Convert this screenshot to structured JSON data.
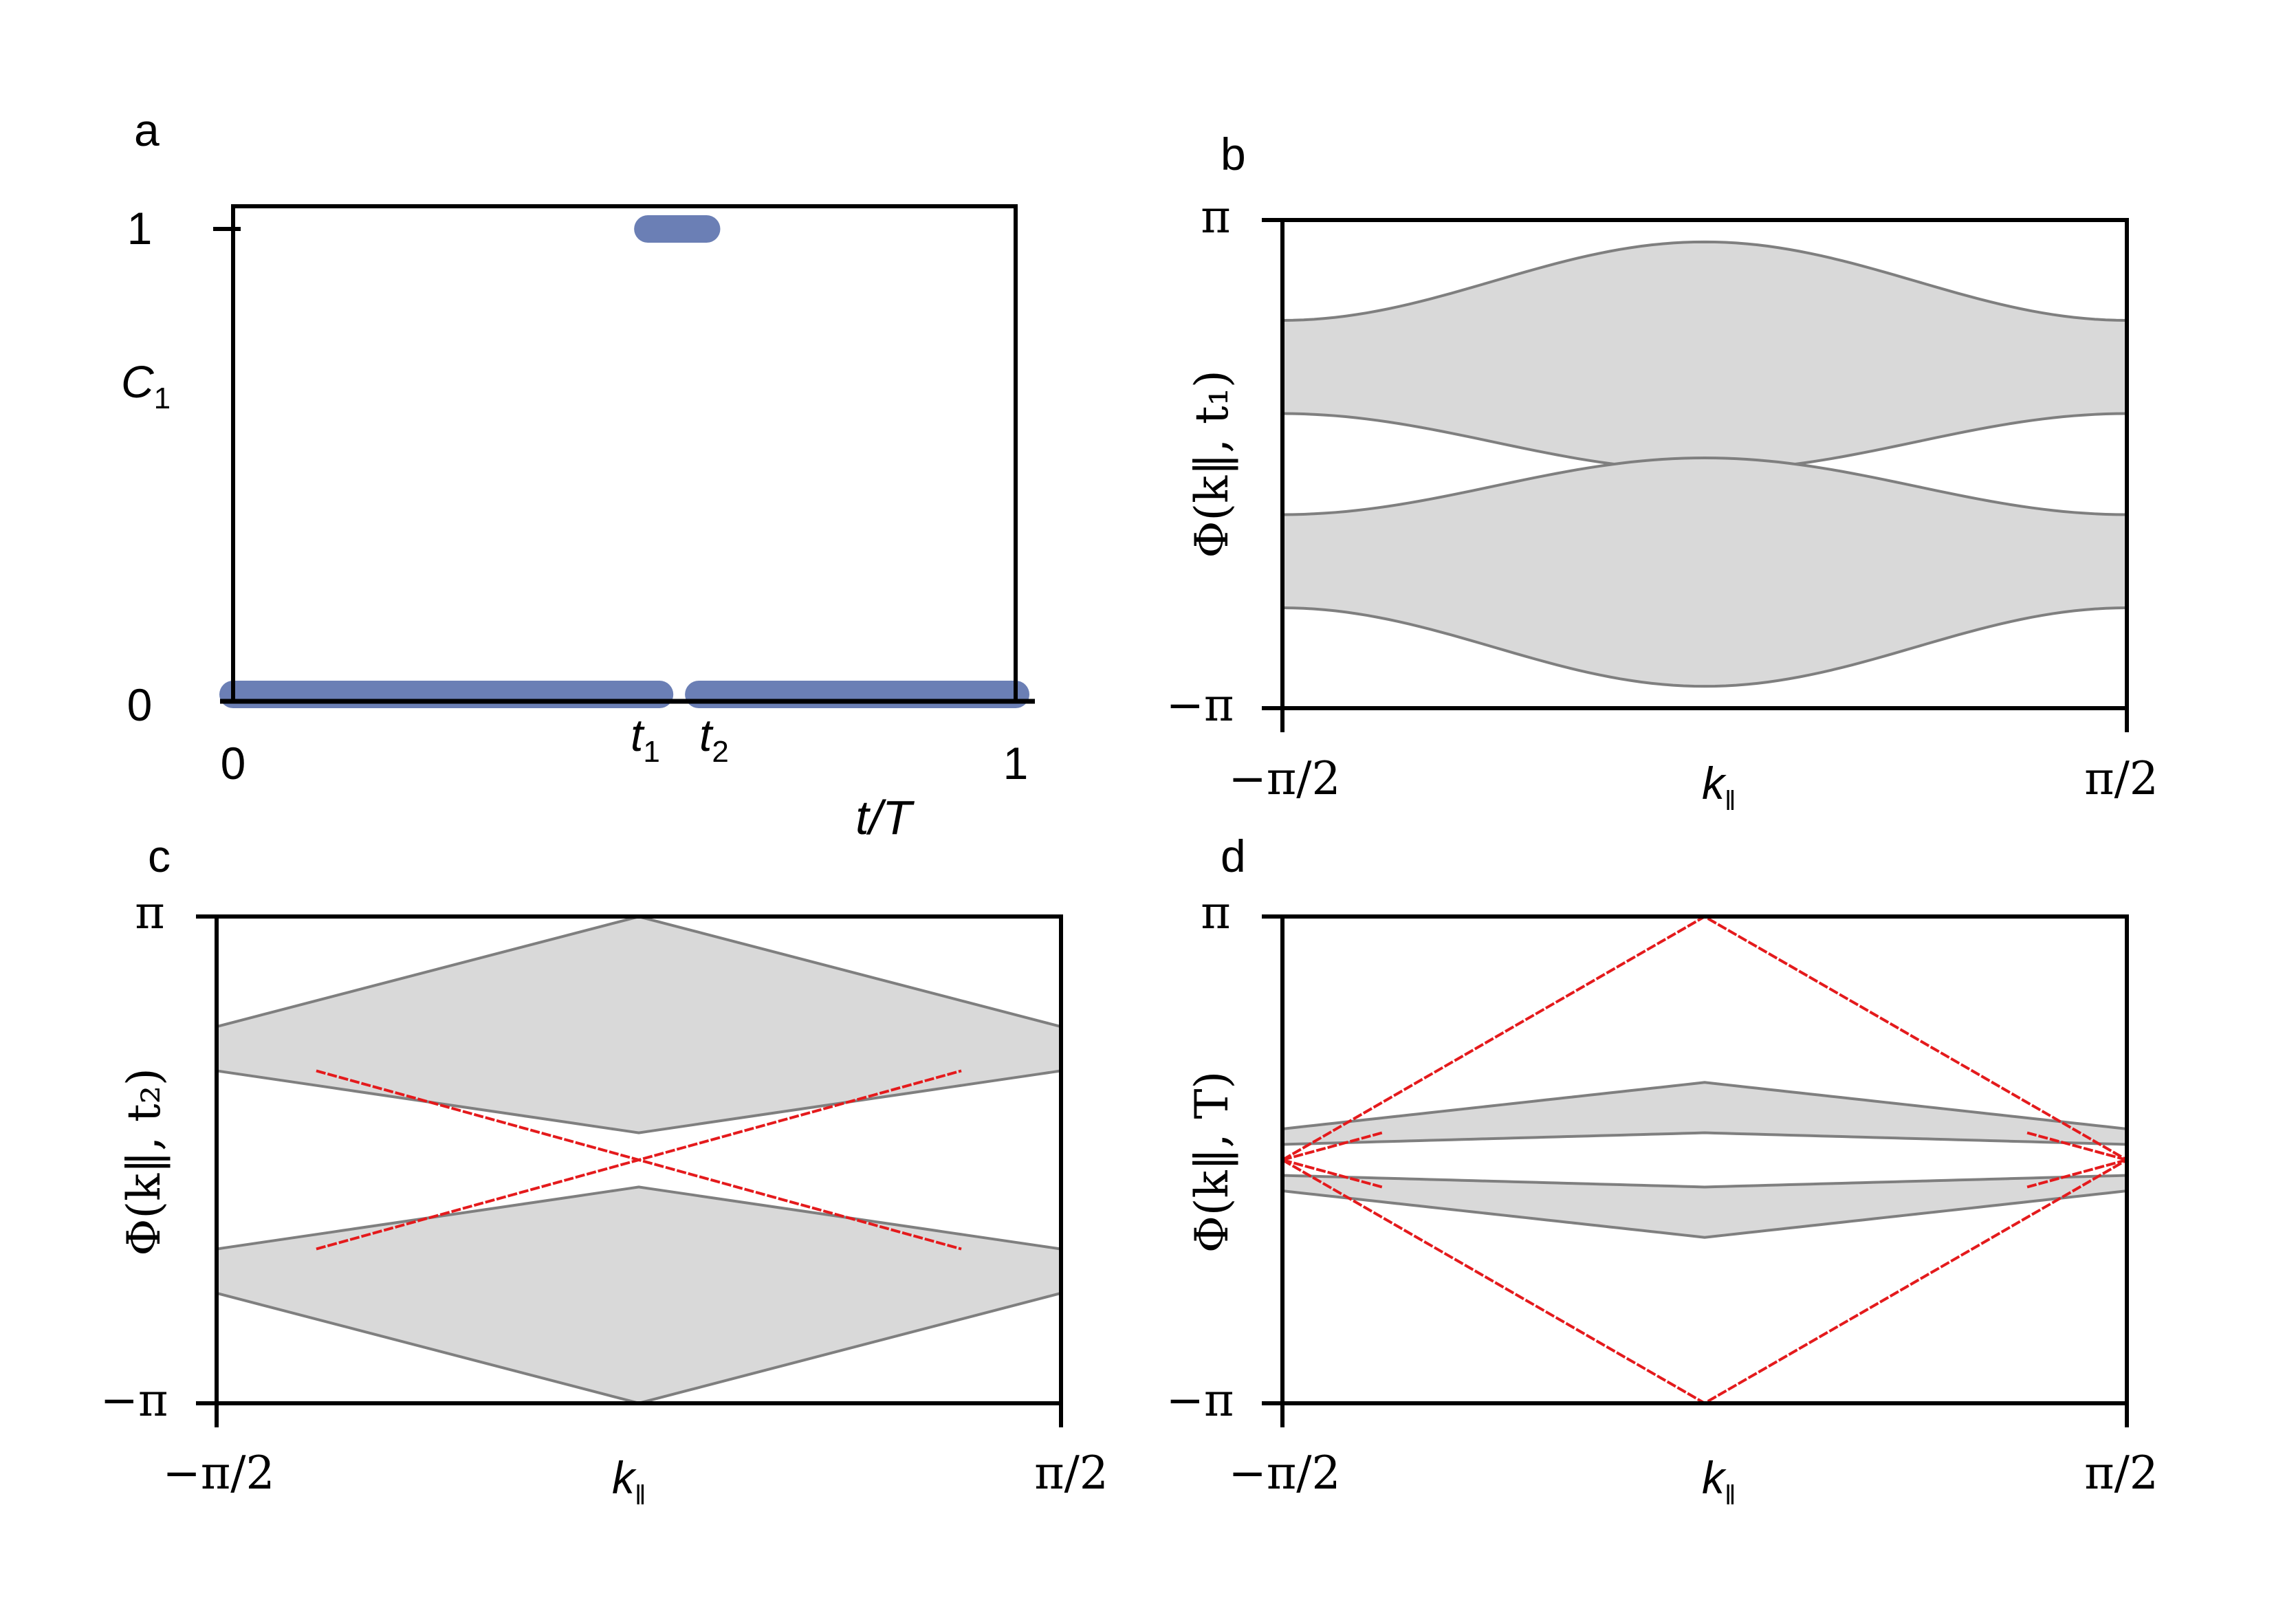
{
  "panels": {
    "a": {
      "letter": "a",
      "ylabel": "C",
      "ylabel_sub": "1",
      "xlabel": "t/T",
      "yticks": [
        "1",
        "0"
      ],
      "xticks": [
        "0",
        "1"
      ],
      "t1": "t",
      "t1_sub": "1",
      "t2": "t",
      "t2_sub": "2"
    },
    "b": {
      "letter": "b",
      "ylabel": "Φ(k‖, t₁)",
      "yticks": [
        "π",
        "−π"
      ],
      "xticks": [
        "−π/2",
        "π/2"
      ],
      "xlabel": "k",
      "xlabel_sub": "‖"
    },
    "c": {
      "letter": "c",
      "ylabel": "Φ(k‖, t₂)",
      "yticks": [
        "π",
        "−π"
      ],
      "xticks": [
        "−π/2",
        "π/2"
      ],
      "xlabel": "k",
      "xlabel_sub": "‖"
    },
    "d": {
      "letter": "d",
      "ylabel": "Φ(k‖, T)",
      "yticks": [
        "π",
        "−π"
      ],
      "xticks": [
        "−π/2",
        "π/2"
      ],
      "xlabel": "k",
      "xlabel_sub": "‖"
    }
  },
  "colors": {
    "chern": "#6b7fb5",
    "band_fill": "#d9d9d9",
    "band_edge": "#7f7f7f",
    "edge_state": "#e41a1c"
  },
  "chart_data": [
    {
      "panel": "a",
      "type": "line",
      "xlabel": "t/T",
      "ylabel": "C1",
      "xlim": [
        0,
        1
      ],
      "ylim": [
        0,
        1
      ],
      "series": [
        {
          "segments": [
            {
              "x": [
                0,
                0.545
              ],
              "y": 0
            },
            {
              "x": [
                0.53,
                0.605
              ],
              "y": 1
            },
            {
              "x": [
                0.595,
                1
              ],
              "y": 0
            }
          ]
        }
      ]
    },
    {
      "panel": "b",
      "type": "area",
      "xlabel": "k‖",
      "ylabel": "Φ(k‖, t1)",
      "xlim": [
        -1.5708,
        1.5708
      ],
      "ylim": [
        -3.1416,
        3.1416
      ],
      "bands": [
        {
          "lower_edge": 0.65,
          "lower_center": -0.08,
          "upper_edge": 1.85,
          "upper_center": 2.86
        },
        {
          "lower_edge": -1.85,
          "lower_center": -2.86,
          "upper_edge": -0.65,
          "upper_center": 0.08
        }
      ]
    },
    {
      "panel": "c",
      "type": "area",
      "xlabel": "k‖",
      "ylabel": "Φ(k‖, t2)",
      "xlim": [
        -1.5708,
        1.5708
      ],
      "ylim": [
        -3.1416,
        3.1416
      ],
      "bands": [
        {
          "lower_edge": 1.15,
          "lower_center": 0.35,
          "upper_edge": 1.72,
          "upper_center": 3.14
        },
        {
          "lower_edge": -1.72,
          "lower_center": -3.14,
          "upper_edge": -1.15,
          "upper_center": -0.35
        }
      ],
      "edge_states": [
        {
          "k": [
            -1.2,
            1.2
          ],
          "phi": [
            1.15,
            -1.15
          ]
        },
        {
          "k": [
            -1.2,
            1.2
          ],
          "phi": [
            -1.15,
            1.15
          ]
        }
      ]
    },
    {
      "panel": "d",
      "type": "area",
      "xlabel": "k‖",
      "ylabel": "Φ(k‖, T)",
      "xlim": [
        -1.5708,
        1.5708
      ],
      "ylim": [
        -3.1416,
        3.1416
      ],
      "bands": [
        {
          "lower_edge": 0.2,
          "lower_center": 0.35,
          "upper_edge": 0.4,
          "upper_center": 1.0
        },
        {
          "lower_edge": -0.4,
          "lower_center": -1.0,
          "upper_edge": -0.2,
          "upper_center": -0.35
        }
      ],
      "edge_states": [
        {
          "k": [
            -1.5708,
            0,
            1.5708
          ],
          "phi": [
            0,
            3.14,
            0
          ]
        },
        {
          "k": [
            -1.5708,
            0,
            1.5708
          ],
          "phi": [
            0,
            -3.14,
            0
          ]
        },
        {
          "k": [
            -1.5708,
            -1.2
          ],
          "phi": [
            0,
            0.35
          ]
        },
        {
          "k": [
            -1.5708,
            -1.2
          ],
          "phi": [
            0,
            -0.35
          ]
        },
        {
          "k": [
            1.2,
            1.5708
          ],
          "phi": [
            0.35,
            0
          ]
        },
        {
          "k": [
            1.2,
            1.5708
          ],
          "phi": [
            -0.35,
            0
          ]
        }
      ]
    }
  ]
}
